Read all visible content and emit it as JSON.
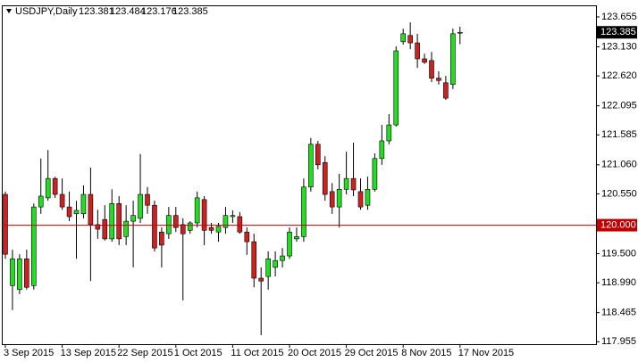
{
  "chart_data": {
    "type": "candlestick",
    "title": "USDJPY,Daily",
    "categories": [
      "3 Sep 2015",
      null,
      null,
      null,
      null,
      null,
      null,
      null,
      "13 Sep 2015",
      null,
      null,
      null,
      null,
      null,
      null,
      null,
      "22 Sep 2015",
      null,
      null,
      null,
      null,
      null,
      null,
      null,
      "1 Oct 2015",
      null,
      null,
      null,
      null,
      null,
      null,
      null,
      "11 Oct 2015",
      null,
      null,
      null,
      null,
      null,
      null,
      null,
      "20 Oct 2015",
      null,
      null,
      null,
      null,
      null,
      null,
      null,
      "29 Oct 2015",
      null,
      null,
      null,
      null,
      null,
      null,
      null,
      "8 Nov 2015",
      null,
      null,
      null,
      null,
      null,
      null,
      null,
      "17 Nov 2015"
    ],
    "open": [
      120.54,
      118.94,
      118.87,
      119.41,
      118.94,
      120.32,
      120.48,
      120.82,
      120.54,
      120.32,
      120.2,
      120.2,
      120.54,
      120.01,
      120.1,
      119.76,
      120.38,
      119.8,
      120.07,
      120.12,
      120.54,
      120.35,
      119.88,
      119.85,
      120.17,
      120.01,
      119.91,
      120.04,
      120.45,
      119.96,
      119.88,
      119.96,
      120.15,
      120.15,
      119.88,
      119.71,
      119.07,
      119.1,
      119.26,
      119.38,
      119.46,
      119.76,
      119.8,
      120.67,
      121.42,
      121.1,
      120.59,
      120.32,
      120.63,
      120.82,
      120.59,
      120.35,
      120.63,
      121.17,
      121.48,
      121.76,
      123.22,
      123.33,
      123.2,
      122.92,
      122.89,
      122.58,
      122.5,
      122.47,
      123.381
    ],
    "high": [
      120.59,
      119.57,
      119.49,
      119.57,
      120.38,
      121.17,
      121.32,
      120.85,
      120.82,
      120.59,
      120.43,
      120.7,
      121.01,
      120.27,
      120.35,
      120.63,
      120.51,
      120.35,
      120.43,
      121.25,
      120.67,
      120.43,
      119.96,
      120.32,
      120.32,
      120.12,
      120.07,
      120.59,
      120.51,
      120.04,
      120.04,
      120.32,
      120.26,
      120.23,
      119.96,
      119.85,
      119.26,
      119.54,
      119.54,
      119.6,
      119.96,
      119.96,
      120.82,
      121.53,
      121.48,
      121.21,
      120.74,
      120.9,
      121.29,
      121.45,
      120.82,
      120.85,
      121.26,
      121.76,
      121.95,
      123.14,
      123.45,
      123.56,
      123.36,
      123.01,
      123.04,
      122.7,
      122.62,
      123.45,
      123.484
    ],
    "low": [
      119.41,
      118.51,
      118.79,
      118.87,
      118.87,
      120.2,
      120.43,
      120.48,
      120.27,
      120.07,
      119.41,
      120.12,
      119.02,
      119.76,
      119.73,
      119.71,
      119.65,
      119.65,
      119.26,
      120.04,
      120.2,
      119.54,
      119.26,
      119.76,
      119.88,
      118.68,
      119.85,
      119.96,
      119.65,
      119.85,
      119.71,
      119.85,
      120.04,
      119.85,
      119.48,
      118.91,
      118.07,
      118.87,
      119.1,
      119.26,
      119.41,
      119.71,
      119.71,
      120.59,
      120.98,
      120.43,
      120.2,
      119.96,
      120.54,
      120.51,
      120.27,
      120.27,
      120.59,
      121.06,
      121.42,
      121.73,
      123.17,
      123.09,
      122.76,
      122.83,
      122.51,
      122.47,
      122.2,
      122.39,
      123.176
    ],
    "close": [
      119.49,
      119.41,
      119.41,
      118.91,
      120.32,
      120.51,
      120.82,
      120.54,
      120.32,
      120.15,
      120.26,
      120.54,
      120.01,
      119.93,
      119.76,
      120.38,
      119.76,
      120.07,
      120.17,
      120.54,
      120.35,
      119.6,
      119.65,
      120.17,
      119.96,
      119.85,
      120.04,
      120.48,
      119.91,
      119.91,
      119.98,
      120.17,
      120.17,
      119.88,
      119.71,
      119.07,
      119.02,
      119.41,
      119.38,
      119.46,
      119.88,
      119.8,
      120.67,
      121.42,
      121.06,
      120.54,
      120.32,
      120.63,
      120.82,
      120.62,
      120.32,
      120.63,
      121.17,
      121.48,
      121.76,
      123.06,
      123.36,
      123.2,
      122.92,
      122.86,
      122.58,
      122.54,
      122.23,
      123.36,
      123.385
    ],
    "up_color": "#22dd22",
    "down_color": "#cc2222",
    "ylim": [
      117.912,
      123.827
    ],
    "yticks": [
      123.655,
      {
        "value": 123.13,
        "label": "123.130"
      },
      {
        "value": 122.62,
        "label": "122.620"
      },
      122.095,
      121.585,
      {
        "value": 121.06,
        "label": "121.060"
      },
      {
        "value": 120.55,
        "label": "120.550"
      },
      {
        "value": 119.5,
        "label": "119.500"
      },
      {
        "value": 118.99,
        "label": "118.990"
      },
      118.465,
      117.955
    ],
    "hline": {
      "value": 120,
      "label": "120.000",
      "color": "#c00000"
    }
  }
}
